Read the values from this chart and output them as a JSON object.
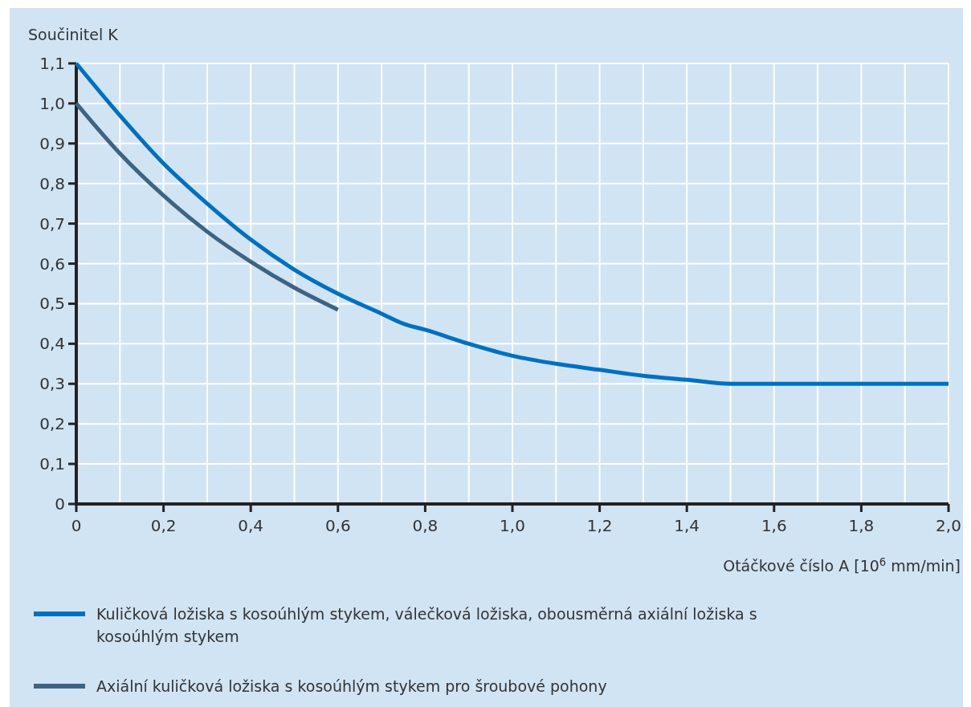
{
  "chart_data": {
    "type": "line",
    "ylabel": "Součinitel K",
    "xlabel": "Otáčkové číslo A [10$^{6}$ mm/min]",
    "xlim": [
      0,
      2.0
    ],
    "xticks": [
      {
        "value": 0,
        "label": "0"
      },
      {
        "value": 0.2,
        "label": "0,2"
      },
      {
        "value": 0.4,
        "label": "0,4"
      },
      {
        "value": 0.6,
        "label": "0,6"
      },
      {
        "value": 0.8,
        "label": "0,8"
      },
      {
        "value": 1.0,
        "label": "1,0"
      },
      {
        "value": 1.2,
        "label": "1,2"
      },
      {
        "value": 1.4,
        "label": "1,4"
      },
      {
        "value": 1.6,
        "label": "1,6"
      },
      {
        "value": 1.8,
        "label": "1,8"
      },
      {
        "value": 2.0,
        "label": "2,0"
      }
    ],
    "ylim": [
      0,
      1.1
    ],
    "yticks": [
      {
        "value": 0,
        "label": "0"
      },
      {
        "value": 0.1,
        "label": "0,1"
      },
      {
        "value": 0.2,
        "label": "0,2"
      },
      {
        "value": 0.3,
        "label": "0,3"
      },
      {
        "value": 0.4,
        "label": "0,4"
      },
      {
        "value": 0.5,
        "label": "0,5"
      },
      {
        "value": 0.6,
        "label": "0,6"
      },
      {
        "value": 0.7,
        "label": "0,7"
      },
      {
        "value": 0.8,
        "label": "0,8"
      },
      {
        "value": 0.9,
        "label": "0,9"
      },
      {
        "value": 1.0,
        "label": "1,0"
      },
      {
        "value": 1.1,
        "label": "1,1"
      }
    ],
    "grid": true,
    "legend": "bottom",
    "marker": "none",
    "line_style": "solid",
    "series": [
      {
        "name": "Kuličková ložiska s kosoúhlým stykem, válečková ložiska, obousměrná axiální ložiska s kosoúhlým stykem",
        "color": "#0070c0",
        "x": [
          0,
          0.1,
          0.2,
          0.3,
          0.4,
          0.5,
          0.6,
          0.7,
          0.75,
          0.8,
          0.9,
          1.0,
          1.1,
          1.2,
          1.3,
          1.4,
          1.5,
          2.0
        ],
        "values": [
          1.1,
          0.97,
          0.85,
          0.75,
          0.66,
          0.585,
          0.525,
          0.475,
          0.45,
          0.435,
          0.4,
          0.37,
          0.35,
          0.335,
          0.32,
          0.31,
          0.3,
          0.3
        ]
      },
      {
        "name": "Axiální kuličková ložiska s kosoúhlým stykem pro šroubové pohony",
        "color": "#3d6482",
        "x": [
          0,
          0.1,
          0.2,
          0.3,
          0.4,
          0.5,
          0.6
        ],
        "values": [
          1.0,
          0.875,
          0.77,
          0.68,
          0.605,
          0.54,
          0.485
        ]
      }
    ]
  }
}
